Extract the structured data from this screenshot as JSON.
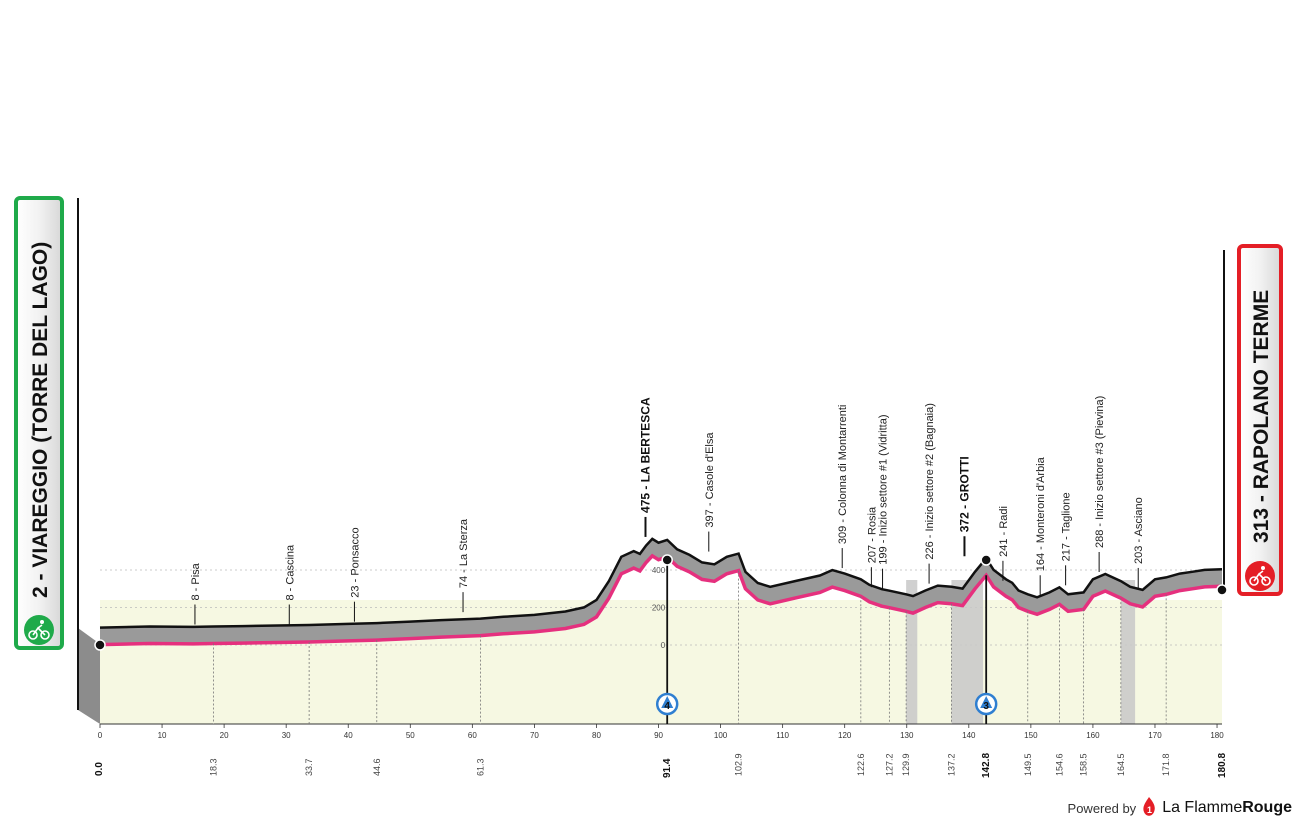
{
  "stage": {
    "start": {
      "label": "2 - VIAREGGIO (TORRE DEL LAGO)",
      "border_color": "#1faa4a",
      "km": "0.0"
    },
    "finish": {
      "label": "313 - RAPOLANO TERME",
      "border_color": "#e41e26",
      "km": "180.8"
    }
  },
  "footer": {
    "powered_by": "Powered by",
    "brand_light": "La Flamme",
    "brand_bold": "Rouge"
  },
  "colors": {
    "gravel_line": "#e5307e",
    "profile_fill": "#9a9a9a",
    "ground": "#f6f8e2",
    "sector_band": "#c8c8c8",
    "climb_cat_4": "#2f7fd1",
    "climb_cat_3": "#2f7fd1"
  },
  "chart_data": {
    "type": "area",
    "title": "",
    "xlabel": "",
    "ylabel": "",
    "xlim": [
      0,
      180.8
    ],
    "ylim": [
      -200,
      700
    ],
    "x_ticks": [
      0,
      10,
      20,
      30,
      40,
      50,
      60,
      70,
      80,
      90,
      100,
      110,
      120,
      130,
      140,
      150,
      160,
      170,
      180
    ],
    "y_ticks": [
      0,
      200,
      400
    ],
    "profile": {
      "x": [
        0,
        8,
        15,
        18.3,
        23,
        30,
        33.7,
        40,
        44.6,
        50,
        55,
        61.3,
        65,
        70,
        75,
        78,
        80,
        82,
        84,
        86,
        87,
        88,
        89,
        90,
        91.4,
        93,
        95,
        97,
        99,
        101,
        102.9,
        104,
        106,
        108,
        112,
        116,
        118,
        120,
        122.6,
        124,
        126,
        127.2,
        129.9,
        131,
        133,
        135,
        137.2,
        139,
        141,
        142.8,
        144,
        146,
        147,
        148,
        149.5,
        151,
        153,
        154.6,
        156,
        158.5,
        160,
        162,
        164.5,
        166,
        168,
        170,
        171.8,
        174,
        176,
        178,
        180.8
      ],
      "y": [
        2,
        8,
        6,
        8,
        10,
        14,
        16,
        22,
        26,
        34,
        42,
        50,
        60,
        70,
        88,
        110,
        150,
        250,
        380,
        410,
        395,
        440,
        475,
        455,
        470,
        420,
        390,
        350,
        340,
        380,
        397,
        300,
        240,
        220,
        250,
        280,
        309,
        290,
        260,
        230,
        207,
        199,
        180,
        170,
        200,
        226,
        220,
        210,
        300,
        372,
        310,
        260,
        241,
        200,
        180,
        164,
        190,
        217,
        180,
        190,
        260,
        288,
        250,
        220,
        203,
        260,
        270,
        290,
        300,
        310,
        313
      ]
    },
    "waypoints": [
      {
        "km": 15.3,
        "alt": 8,
        "name": "8 - Pisa",
        "bold": false
      },
      {
        "km": 30.5,
        "alt": 8,
        "name": "8 - Cascina",
        "bold": false
      },
      {
        "km": 41,
        "alt": 23,
        "name": "23 - Ponsacco",
        "bold": false
      },
      {
        "km": 58.5,
        "alt": 74,
        "name": "74 - La Sterza",
        "bold": false
      },
      {
        "km": 87.9,
        "alt": 475,
        "name": "475 - LA BERTESCA",
        "bold": true
      },
      {
        "km": 98.1,
        "alt": 397,
        "name": "397 - Casole d'Elsa",
        "bold": false
      },
      {
        "km": 119.6,
        "alt": 309,
        "name": "309 - Colonna di Montarrenti",
        "bold": false
      },
      {
        "km": 124.3,
        "alt": 207,
        "name": "207 - Rosia",
        "bold": false
      },
      {
        "km": 126.1,
        "alt": 199,
        "name": "199 - Inizio settore #1 (Vidritta)",
        "bold": false
      },
      {
        "km": 133.6,
        "alt": 226,
        "name": "226 - Inizio settore #2 (Bagnaia)",
        "bold": false
      },
      {
        "km": 139.3,
        "alt": 372,
        "name": "372 - GROTTI",
        "bold": true
      },
      {
        "km": 145.5,
        "alt": 241,
        "name": "241 - Radi",
        "bold": false
      },
      {
        "km": 151.5,
        "alt": 164,
        "name": "164 - Monteroni d'Arbia",
        "bold": false
      },
      {
        "km": 155.6,
        "alt": 217,
        "name": "217 - Taglione",
        "bold": false
      },
      {
        "km": 161,
        "alt": 288,
        "name": "288 - Inizio settore #3 (Pievina)",
        "bold": false
      },
      {
        "km": 167.3,
        "alt": 203,
        "name": "203 - Asciano",
        "bold": false
      }
    ],
    "km_markers": [
      {
        "km": 18.3,
        "label": "18.3",
        "bold": false
      },
      {
        "km": 33.7,
        "label": "33.7",
        "bold": false
      },
      {
        "km": 44.6,
        "label": "44.6",
        "bold": false
      },
      {
        "km": 61.3,
        "label": "61.3",
        "bold": false
      },
      {
        "km": 91.4,
        "label": "91.4",
        "bold": true
      },
      {
        "km": 102.9,
        "label": "102.9",
        "bold": false
      },
      {
        "km": 122.6,
        "label": "122.6",
        "bold": false
      },
      {
        "km": 127.2,
        "label": "127.2",
        "bold": false
      },
      {
        "km": 129.9,
        "label": "129.9",
        "bold": false
      },
      {
        "km": 137.2,
        "label": "137.2",
        "bold": false
      },
      {
        "km": 142.8,
        "label": "142.8",
        "bold": true
      },
      {
        "km": 149.5,
        "label": "149.5",
        "bold": false
      },
      {
        "km": 154.6,
        "label": "154.6",
        "bold": false
      },
      {
        "km": 158.5,
        "label": "158.5",
        "bold": false
      },
      {
        "km": 164.5,
        "label": "164.5",
        "bold": false
      },
      {
        "km": 171.8,
        "label": "171.8",
        "bold": false
      }
    ],
    "climbs": [
      {
        "km": 91.4,
        "category": "4"
      },
      {
        "km": 142.8,
        "category": "3"
      }
    ],
    "gravel_sectors": [
      {
        "from": 129.9,
        "to": 131.7
      },
      {
        "from": 137.2,
        "to": 142.3
      },
      {
        "from": 164.5,
        "to": 166.8
      }
    ]
  }
}
